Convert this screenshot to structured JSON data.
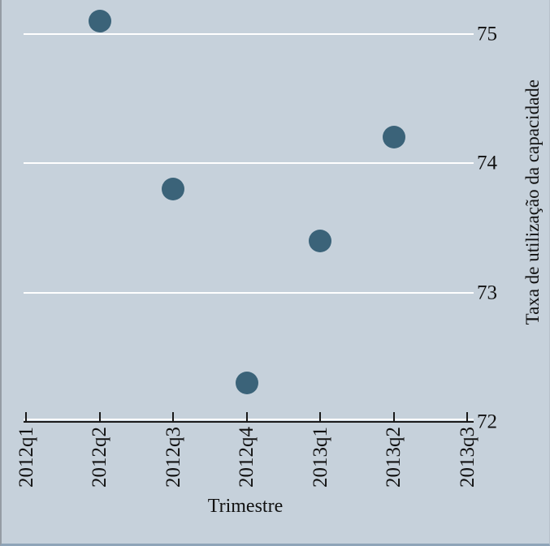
{
  "window": {
    "background_color": "#c6d1db",
    "left_border_color": "#949ca4",
    "bottom_border_color": "#8ea4b8"
  },
  "chart_data": {
    "type": "scatter",
    "title": "",
    "xlabel": "Trimestre",
    "ylabel": "Taxa de utilização da capacidade",
    "x_tick_labels": [
      "2012q1",
      "2012q2",
      "2012q3",
      "2012q4",
      "2013q1",
      "2013q2",
      "2013q3"
    ],
    "y_tick_labels": [
      "72",
      "73",
      "74",
      "75"
    ],
    "ylim": [
      72,
      75.3
    ],
    "grid": "horizontal-white-gridlines",
    "legend": "none",
    "points": [
      {
        "x": "2012q2",
        "y": 75.1
      },
      {
        "x": "2012q3",
        "y": 73.8
      },
      {
        "x": "2012q4",
        "y": 72.3
      },
      {
        "x": "2013q1",
        "y": 73.4
      },
      {
        "x": "2013q2",
        "y": 74.2
      }
    ],
    "marker_color": "#3b6379",
    "gridline_color": "#ffffff",
    "axis_color": "#1a1a1a",
    "background_color": "#c6d1db"
  }
}
